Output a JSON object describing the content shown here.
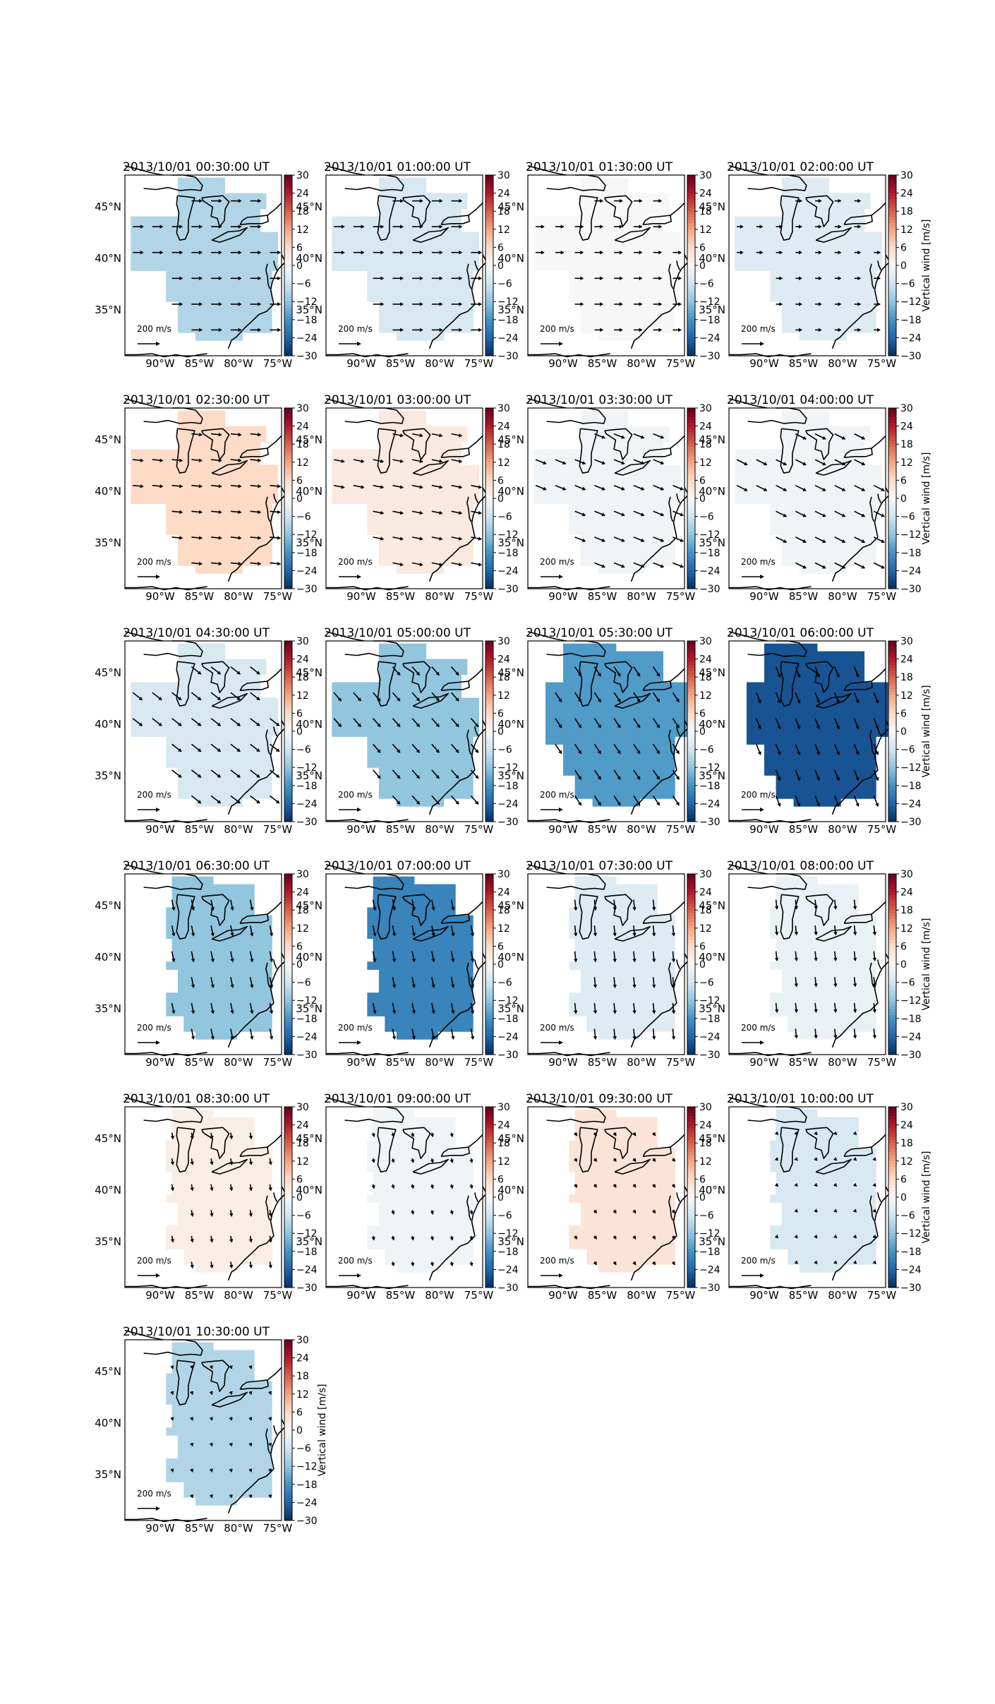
{
  "figure": {
    "colorbar_label": "Vertical wind [m/s]",
    "colorbar_ticks": [
      30,
      24,
      18,
      12,
      6,
      0,
      -6,
      -12,
      -18,
      -24,
      -30
    ],
    "colorbar_tick_labels": [
      "30",
      "24",
      "18",
      "12",
      "6",
      "0",
      "−6",
      "−12",
      "−18",
      "−24",
      "−30"
    ],
    "lat_tick_labels": [
      "45°N",
      "40°N",
      "35°N"
    ],
    "lon_tick_labels": [
      "90°W",
      "85°W",
      "80°W",
      "75°W"
    ],
    "quiver_key_label": "200 m/s",
    "colors": {
      "cmap_low": "#053061",
      "cmap_mid": "#f7f7f7",
      "cmap_high": "#67001f",
      "coast": "#000000",
      "arrow": "#000000"
    }
  },
  "chart_data": [
    {
      "type": "heatmap",
      "title": "2013/10/01 00:30:00 UT",
      "value": -9,
      "region": "wide",
      "wind": {
        "u": 1,
        "v": 0
      }
    },
    {
      "type": "heatmap",
      "title": "2013/10/01 01:00:00 UT",
      "value": -5,
      "region": "wide",
      "wind": {
        "u": 1,
        "v": 0
      }
    },
    {
      "type": "heatmap",
      "title": "2013/10/01 01:30:00 UT",
      "value": 0,
      "region": "wide",
      "wind": {
        "u": 0.8,
        "v": 0
      }
    },
    {
      "type": "heatmap",
      "title": "2013/10/01 02:00:00 UT",
      "value": -4,
      "region": "wide",
      "wind": {
        "u": 0.6,
        "v": 0
      }
    },
    {
      "type": "heatmap",
      "title": "2013/10/01 02:30:00 UT",
      "value": 6,
      "region": "wide",
      "wind": {
        "u": 1,
        "v": -0.1
      }
    },
    {
      "type": "heatmap",
      "title": "2013/10/01 03:00:00 UT",
      "value": 3,
      "region": "wide",
      "wind": {
        "u": 1,
        "v": -0.2
      }
    },
    {
      "type": "heatmap",
      "title": "2013/10/01 03:30:00 UT",
      "value": -1,
      "region": "wide",
      "wind": {
        "u": 1,
        "v": -0.4
      }
    },
    {
      "type": "heatmap",
      "title": "2013/10/01 04:00:00 UT",
      "value": -1,
      "region": "wide",
      "wind": {
        "u": 1,
        "v": -0.5
      }
    },
    {
      "type": "heatmap",
      "title": "2013/10/01 04:30:00 UT",
      "value": -5,
      "region": "wide",
      "wind": {
        "u": 0.9,
        "v": -0.7
      }
    },
    {
      "type": "heatmap",
      "title": "2013/10/01 05:00:00 UT",
      "value": -12,
      "region": "wide",
      "wind": {
        "u": 0.7,
        "v": -0.8
      }
    },
    {
      "type": "heatmap",
      "title": "2013/10/01 05:30:00 UT",
      "value": -17,
      "region": "mid",
      "wind": {
        "u": 0.6,
        "v": -0.9
      }
    },
    {
      "type": "heatmap",
      "title": "2013/10/01 06:00:00 UT",
      "value": -26,
      "region": "mid",
      "wind": {
        "u": 0.4,
        "v": -1
      }
    },
    {
      "type": "heatmap",
      "title": "2013/10/01 06:30:00 UT",
      "value": -12,
      "region": "narrow",
      "wind": {
        "u": 0.2,
        "v": -1
      }
    },
    {
      "type": "heatmap",
      "title": "2013/10/01 07:00:00 UT",
      "value": -20,
      "region": "narrow",
      "wind": {
        "u": 0.2,
        "v": -1
      }
    },
    {
      "type": "heatmap",
      "title": "2013/10/01 07:30:00 UT",
      "value": -4,
      "region": "narrow",
      "wind": {
        "u": 0.1,
        "v": -1
      }
    },
    {
      "type": "heatmap",
      "title": "2013/10/01 08:00:00 UT",
      "value": -2,
      "region": "narrow",
      "wind": {
        "u": 0.1,
        "v": -0.9
      }
    },
    {
      "type": "heatmap",
      "title": "2013/10/01 08:30:00 UT",
      "value": 2,
      "region": "narrow",
      "wind": {
        "u": 0.1,
        "v": -0.6
      }
    },
    {
      "type": "heatmap",
      "title": "2013/10/01 09:00:00 UT",
      "value": -1,
      "region": "narrow",
      "wind": {
        "u": 0.1,
        "v": -0.4
      }
    },
    {
      "type": "heatmap",
      "title": "2013/10/01 09:30:00 UT",
      "value": 4,
      "region": "narrow",
      "wind": {
        "u": 0.2,
        "v": -0.3
      }
    },
    {
      "type": "heatmap",
      "title": "2013/10/01 10:00:00 UT",
      "value": -5,
      "region": "narrow",
      "wind": {
        "u": 0.2,
        "v": -0.2
      }
    },
    {
      "type": "heatmap",
      "title": "2013/10/01 10:30:00 UT",
      "value": -9,
      "region": "narrow",
      "wind": {
        "u": 0.1,
        "v": -0.3
      }
    }
  ]
}
